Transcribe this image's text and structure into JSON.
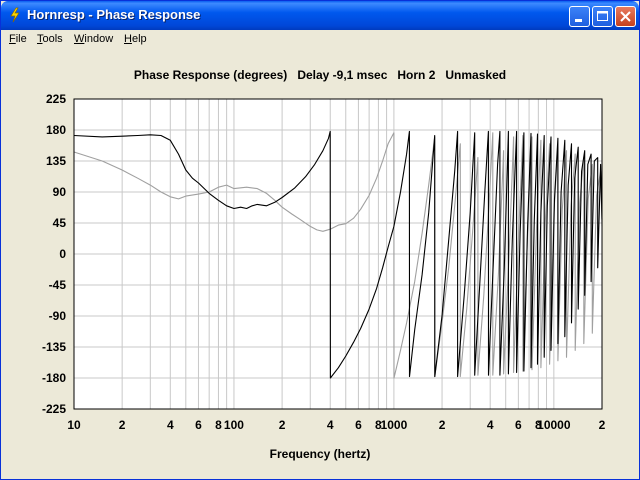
{
  "window": {
    "title": "Hornresp - Phase Response"
  },
  "menu": {
    "items": [
      {
        "label_first": "F",
        "label_rest": "ile"
      },
      {
        "label_first": "T",
        "label_rest": "ools"
      },
      {
        "label_first": "W",
        "label_rest": "indow"
      },
      {
        "label_first": "H",
        "label_rest": "elp"
      }
    ]
  },
  "chart_header": {
    "title": "Phase Response (degrees)",
    "delay": "Delay -9,1 msec",
    "horn": "Horn 2",
    "mask": "Unmasked"
  },
  "colors": {
    "primary_trace": "#000000",
    "secondary_trace": "#A0A0A0",
    "grid": "#C8C8C8",
    "plot_bg": "#FFFFFF"
  },
  "chart_data": {
    "type": "line",
    "title": "Phase Response (degrees)",
    "xlabel": "Frequency (hertz)",
    "ylabel": "",
    "xscale": "log",
    "xlim": [
      10,
      20000
    ],
    "ylim": [
      -225,
      225
    ],
    "y_ticks": [
      "225",
      "180",
      "135",
      "90",
      "45",
      "0",
      "-45",
      "-90",
      "-135",
      "-180",
      "-225"
    ],
    "x_ticks": [
      {
        "v": 10,
        "label": "10"
      },
      {
        "v": 20,
        "label": "2"
      },
      {
        "v": 40,
        "label": "4"
      },
      {
        "v": 60,
        "label": "6"
      },
      {
        "v": 80,
        "label": "8"
      },
      {
        "v": 100,
        "label": "100"
      },
      {
        "v": 200,
        "label": "2"
      },
      {
        "v": 400,
        "label": "4"
      },
      {
        "v": 600,
        "label": "6"
      },
      {
        "v": 800,
        "label": "8"
      },
      {
        "v": 1000,
        "label": "1000"
      },
      {
        "v": 2000,
        "label": "2"
      },
      {
        "v": 4000,
        "label": "4"
      },
      {
        "v": 6000,
        "label": "6"
      },
      {
        "v": 8000,
        "label": "8"
      },
      {
        "v": 10000,
        "label": "10000"
      },
      {
        "v": 20000,
        "label": "2"
      }
    ],
    "grid": true,
    "series": [
      {
        "role": "black",
        "points": [
          [
            10,
            172
          ],
          [
            15,
            170
          ],
          [
            20,
            171
          ],
          [
            25,
            172
          ],
          [
            30,
            173
          ],
          [
            35,
            172
          ],
          [
            40,
            165
          ],
          [
            45,
            145
          ],
          [
            50,
            122
          ],
          [
            55,
            110
          ],
          [
            60,
            103
          ],
          [
            70,
            88
          ],
          [
            80,
            78
          ],
          [
            90,
            70
          ],
          [
            100,
            66
          ],
          [
            110,
            68
          ],
          [
            120,
            66
          ],
          [
            130,
            70
          ],
          [
            140,
            72
          ],
          [
            160,
            70
          ],
          [
            180,
            75
          ],
          [
            200,
            82
          ],
          [
            240,
            96
          ],
          [
            280,
            112
          ],
          [
            320,
            130
          ],
          [
            360,
            150
          ],
          [
            390,
            168
          ],
          [
            400,
            178
          ],
          [
            401,
            -180
          ],
          [
            450,
            -165
          ],
          [
            500,
            -148
          ],
          [
            560,
            -128
          ],
          [
            620,
            -108
          ],
          [
            700,
            -80
          ],
          [
            780,
            -50
          ],
          [
            850,
            -20
          ],
          [
            920,
            10
          ],
          [
            1000,
            40
          ],
          [
            1100,
            90
          ],
          [
            1200,
            145
          ],
          [
            1250,
            178
          ],
          [
            1251,
            -178
          ],
          [
            1350,
            -110
          ],
          [
            1500,
            -30
          ],
          [
            1650,
            60
          ],
          [
            1800,
            172
          ],
          [
            1801,
            -178
          ],
          [
            2000,
            -90
          ],
          [
            2200,
            20
          ],
          [
            2400,
            120
          ],
          [
            2500,
            178
          ],
          [
            2501,
            -178
          ],
          [
            2750,
            -60
          ],
          [
            3000,
            60
          ],
          [
            3200,
            176
          ],
          [
            3201,
            -176
          ],
          [
            3450,
            -40
          ],
          [
            3700,
            90
          ],
          [
            3900,
            178
          ],
          [
            3901,
            -176
          ],
          [
            4150,
            -30
          ],
          [
            4450,
            130
          ],
          [
            4600,
            178
          ],
          [
            4601,
            -176
          ],
          [
            4900,
            -20
          ],
          [
            5200,
            178
          ],
          [
            5201,
            -174
          ],
          [
            5500,
            20
          ],
          [
            5850,
            178
          ],
          [
            5851,
            -172
          ],
          [
            6150,
            30
          ],
          [
            6500,
            176
          ],
          [
            6501,
            -170
          ],
          [
            6850,
            40
          ],
          [
            7200,
            175
          ],
          [
            7201,
            -165
          ],
          [
            7550,
            50
          ],
          [
            7900,
            174
          ],
          [
            7901,
            -160
          ],
          [
            8300,
            60
          ],
          [
            8700,
            172
          ],
          [
            8701,
            -150
          ],
          [
            9100,
            70
          ],
          [
            9600,
            170
          ],
          [
            9601,
            -140
          ],
          [
            10100,
            80
          ],
          [
            10600,
            168
          ],
          [
            10601,
            -130
          ],
          [
            11100,
            90
          ],
          [
            11700,
            165
          ],
          [
            11701,
            -120
          ],
          [
            12300,
            100
          ],
          [
            12900,
            160
          ],
          [
            12901,
            -100
          ],
          [
            13500,
            110
          ],
          [
            14200,
            155
          ],
          [
            14201,
            -80
          ],
          [
            14900,
            120
          ],
          [
            15600,
            150
          ],
          [
            15601,
            -60
          ],
          [
            16300,
            130
          ],
          [
            17100,
            145
          ],
          [
            17101,
            -40
          ],
          [
            17900,
            135
          ],
          [
            18800,
            140
          ],
          [
            18801,
            -20
          ],
          [
            19600,
            130
          ],
          [
            20000,
            50
          ]
        ]
      },
      {
        "role": "gray",
        "points": [
          [
            10,
            148
          ],
          [
            15,
            135
          ],
          [
            20,
            122
          ],
          [
            25,
            110
          ],
          [
            30,
            100
          ],
          [
            35,
            90
          ],
          [
            40,
            83
          ],
          [
            45,
            80
          ],
          [
            50,
            84
          ],
          [
            60,
            87
          ],
          [
            70,
            90
          ],
          [
            80,
            97
          ],
          [
            90,
            100
          ],
          [
            100,
            95
          ],
          [
            120,
            97
          ],
          [
            140,
            95
          ],
          [
            160,
            88
          ],
          [
            180,
            78
          ],
          [
            200,
            68
          ],
          [
            230,
            58
          ],
          [
            260,
            50
          ],
          [
            300,
            40
          ],
          [
            330,
            35
          ],
          [
            360,
            33
          ],
          [
            400,
            36
          ],
          [
            450,
            42
          ],
          [
            500,
            44
          ],
          [
            560,
            52
          ],
          [
            620,
            65
          ],
          [
            700,
            85
          ],
          [
            780,
            110
          ],
          [
            850,
            135
          ],
          [
            920,
            160
          ],
          [
            1000,
            176
          ],
          [
            1001,
            -180
          ],
          [
            1100,
            -140
          ],
          [
            1200,
            -100
          ],
          [
            1350,
            -40
          ],
          [
            1500,
            30
          ],
          [
            1650,
            100
          ],
          [
            1800,
            170
          ],
          [
            1801,
            -178
          ],
          [
            2000,
            -100
          ],
          [
            2200,
            -20
          ],
          [
            2400,
            70
          ],
          [
            2600,
            160
          ],
          [
            2601,
            -178
          ],
          [
            2850,
            -80
          ],
          [
            3100,
            30
          ],
          [
            3350,
            140
          ],
          [
            3351,
            -176
          ],
          [
            3650,
            -60
          ],
          [
            3950,
            80
          ],
          [
            4150,
            176
          ],
          [
            4151,
            -176
          ],
          [
            4500,
            -30
          ],
          [
            4850,
            150
          ],
          [
            4851,
            -174
          ],
          [
            5250,
            0
          ],
          [
            5600,
            170
          ],
          [
            5601,
            -172
          ],
          [
            6000,
            20
          ],
          [
            6400,
            172
          ],
          [
            6401,
            -170
          ],
          [
            6850,
            30
          ],
          [
            7300,
            170
          ],
          [
            7301,
            -168
          ],
          [
            7800,
            40
          ],
          [
            8300,
            165
          ],
          [
            8301,
            -165
          ],
          [
            8850,
            50
          ],
          [
            9400,
            160
          ],
          [
            9401,
            -160
          ],
          [
            10000,
            60
          ],
          [
            10600,
            155
          ],
          [
            10601,
            -155
          ],
          [
            11300,
            65
          ],
          [
            12000,
            150
          ],
          [
            12001,
            -150
          ],
          [
            12800,
            70
          ],
          [
            13600,
            145
          ],
          [
            13601,
            -140
          ],
          [
            14500,
            75
          ],
          [
            15400,
            140
          ],
          [
            15401,
            -130
          ],
          [
            16400,
            80
          ],
          [
            17400,
            130
          ],
          [
            17401,
            -115
          ],
          [
            18500,
            85
          ],
          [
            19600,
            120
          ],
          [
            20000,
            40
          ]
        ]
      }
    ]
  }
}
